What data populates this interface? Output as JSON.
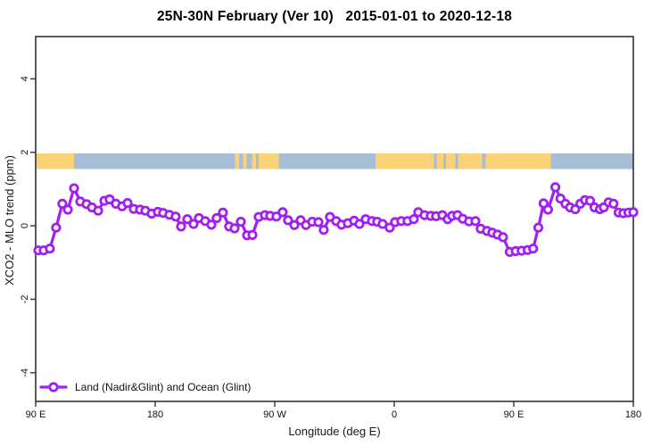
{
  "title": "25N-30N February (Ver 10)   2015-01-01 to 2020-12-18",
  "chart_data": {
    "type": "line",
    "title": "25N-30N February (Ver 10)   2015-01-01 to 2020-12-18",
    "xlabel": "Longitude (deg E)",
    "ylabel": "XCO2 - MLO trend (ppm)",
    "x_domain": [
      0,
      450
    ],
    "ylim": [
      -4.78,
      5.15
    ],
    "grid": "off",
    "legend_position": "bottom-left",
    "x_ticks": [
      {
        "pos": 0,
        "label": "90 E"
      },
      {
        "pos": 90,
        "label": "180"
      },
      {
        "pos": 180,
        "label": "90 W"
      },
      {
        "pos": 270,
        "label": "0"
      },
      {
        "pos": 360,
        "label": "90 E"
      },
      {
        "pos": 450,
        "label": "180"
      }
    ],
    "y_ticks": [
      {
        "value": -4,
        "label": "-4"
      },
      {
        "value": -2,
        "label": "-2"
      },
      {
        "value": 0,
        "label": "0"
      },
      {
        "value": 2,
        "label": "2"
      },
      {
        "value": 4,
        "label": "4"
      }
    ],
    "legend": [
      {
        "label": "Land (Nadir&Glint) and Ocean (Glint)",
        "color": "#A020F0",
        "marker": "open-circle"
      }
    ],
    "surface_band": {
      "description": "land/ocean strip along longitude",
      "value_top": 1.97,
      "value_bottom": 1.55,
      "colors": {
        "land": "#FAD278",
        "ocean": "#A8BED6"
      },
      "segments": [
        {
          "from": 0,
          "to": 29,
          "surface": "land"
        },
        {
          "from": 29,
          "to": 150,
          "surface": "ocean"
        },
        {
          "from": 150,
          "to": 153,
          "surface": "land"
        },
        {
          "from": 153,
          "to": 156,
          "surface": "ocean"
        },
        {
          "from": 156,
          "to": 159,
          "surface": "land"
        },
        {
          "from": 159,
          "to": 163,
          "surface": "ocean"
        },
        {
          "from": 163,
          "to": 166,
          "surface": "land"
        },
        {
          "from": 166,
          "to": 168,
          "surface": "ocean"
        },
        {
          "from": 168,
          "to": 183,
          "surface": "land"
        },
        {
          "from": 183,
          "to": 256,
          "surface": "ocean"
        },
        {
          "from": 256,
          "to": 300,
          "surface": "land"
        },
        {
          "from": 300,
          "to": 302,
          "surface": "ocean"
        },
        {
          "from": 302,
          "to": 307,
          "surface": "land"
        },
        {
          "from": 307,
          "to": 309,
          "surface": "ocean"
        },
        {
          "from": 309,
          "to": 316,
          "surface": "land"
        },
        {
          "from": 316,
          "to": 318,
          "surface": "ocean"
        },
        {
          "from": 318,
          "to": 336,
          "surface": "land"
        },
        {
          "from": 336,
          "to": 339,
          "surface": "ocean"
        },
        {
          "from": 339,
          "to": 388,
          "surface": "land"
        },
        {
          "from": 388,
          "to": 450,
          "surface": "ocean"
        }
      ]
    },
    "series": [
      {
        "name": "Land (Nadir&Glint) and Ocean (Glint)",
        "color": "#A020F0",
        "marker": "open-circle",
        "points": [
          [
            2.0,
            -0.67
          ],
          [
            6.0,
            -0.67
          ],
          [
            10.7,
            -0.62
          ],
          [
            15.4,
            -0.05
          ],
          [
            20.1,
            0.6
          ],
          [
            24.2,
            0.44
          ],
          [
            28.9,
            1.02
          ],
          [
            33.6,
            0.66
          ],
          [
            38.3,
            0.59
          ],
          [
            42.3,
            0.5
          ],
          [
            47.0,
            0.41
          ],
          [
            51.7,
            0.68
          ],
          [
            55.7,
            0.72
          ],
          [
            60.4,
            0.6
          ],
          [
            65.1,
            0.53
          ],
          [
            69.2,
            0.62
          ],
          [
            73.9,
            0.46
          ],
          [
            78.6,
            0.44
          ],
          [
            82.6,
            0.41
          ],
          [
            87.3,
            0.33
          ],
          [
            92.0,
            0.38
          ],
          [
            96.0,
            0.35
          ],
          [
            100.7,
            0.3
          ],
          [
            105.4,
            0.25
          ],
          [
            109.5,
            -0.02
          ],
          [
            114.2,
            0.18
          ],
          [
            118.9,
            0.05
          ],
          [
            122.9,
            0.21
          ],
          [
            127.6,
            0.13
          ],
          [
            132.3,
            0.03
          ],
          [
            136.3,
            0.21
          ],
          [
            141.0,
            0.36
          ],
          [
            145.7,
            -0.02
          ],
          [
            149.8,
            -0.07
          ],
          [
            154.5,
            0.11
          ],
          [
            159.2,
            -0.26
          ],
          [
            163.2,
            -0.25
          ],
          [
            167.9,
            0.24
          ],
          [
            172.6,
            0.29
          ],
          [
            176.6,
            0.27
          ],
          [
            181.3,
            0.25
          ],
          [
            186.0,
            0.37
          ],
          [
            190.0,
            0.15
          ],
          [
            194.8,
            0.02
          ],
          [
            199.5,
            0.15
          ],
          [
            203.5,
            0.02
          ],
          [
            208.2,
            0.11
          ],
          [
            212.9,
            0.1
          ],
          [
            216.9,
            -0.11
          ],
          [
            221.6,
            0.24
          ],
          [
            226.3,
            0.13
          ],
          [
            230.3,
            0.03
          ],
          [
            235.0,
            0.07
          ],
          [
            239.8,
            0.14
          ],
          [
            243.8,
            0.05
          ],
          [
            248.5,
            0.18
          ],
          [
            253.2,
            0.13
          ],
          [
            257.2,
            0.11
          ],
          [
            261.2,
            0.05
          ],
          [
            266.6,
            -0.05
          ],
          [
            270.6,
            0.1
          ],
          [
            275.3,
            0.13
          ],
          [
            280.0,
            0.13
          ],
          [
            284.7,
            0.18
          ],
          [
            288.1,
            0.37
          ],
          [
            292.8,
            0.29
          ],
          [
            297.5,
            0.27
          ],
          [
            301.5,
            0.26
          ],
          [
            306.2,
            0.29
          ],
          [
            310.2,
            0.18
          ],
          [
            313.6,
            0.27
          ],
          [
            317.6,
            0.29
          ],
          [
            321.6,
            0.19
          ],
          [
            326.3,
            0.12
          ],
          [
            331.1,
            0.13
          ],
          [
            335.1,
            -0.08
          ],
          [
            339.8,
            -0.14
          ],
          [
            343.8,
            -0.19
          ],
          [
            347.8,
            -0.24
          ],
          [
            351.9,
            -0.31
          ],
          [
            357.0,
            -0.71
          ],
          [
            361.4,
            -0.69
          ],
          [
            365.9,
            -0.68
          ],
          [
            370.4,
            -0.66
          ],
          [
            374.6,
            -0.62
          ],
          [
            378.5,
            -0.05
          ],
          [
            382.4,
            0.61
          ],
          [
            385.8,
            0.44
          ],
          [
            391.3,
            1.05
          ],
          [
            395.1,
            0.74
          ],
          [
            398.9,
            0.6
          ],
          [
            402.4,
            0.5
          ],
          [
            406.3,
            0.45
          ],
          [
            410.1,
            0.6
          ],
          [
            413.6,
            0.7
          ],
          [
            417.4,
            0.68
          ],
          [
            420.8,
            0.5
          ],
          [
            424.8,
            0.45
          ],
          [
            427.8,
            0.5
          ],
          [
            431.4,
            0.64
          ],
          [
            435.1,
            0.6
          ],
          [
            438.9,
            0.36
          ],
          [
            442.5,
            0.34
          ],
          [
            446.3,
            0.36
          ],
          [
            450.0,
            0.37
          ]
        ]
      }
    ]
  },
  "colors": {
    "axis": "#333333",
    "background": "#ffffff",
    "series_purple": "#A020F0",
    "band_land": "#FAD278",
    "band_ocean": "#A8BED6"
  }
}
